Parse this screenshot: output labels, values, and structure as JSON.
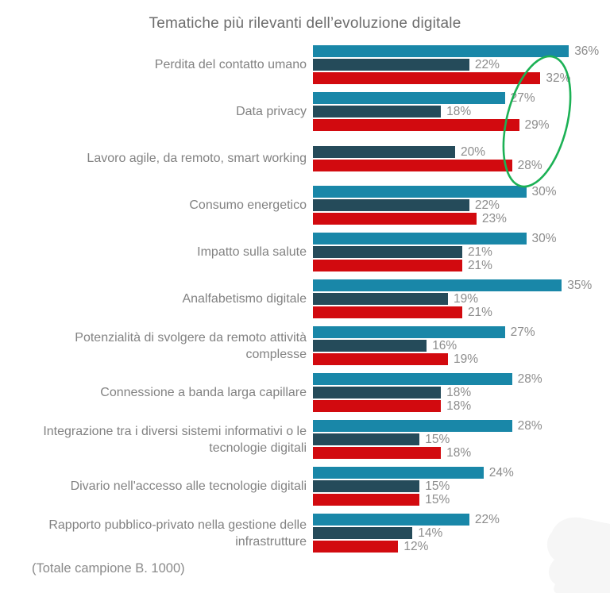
{
  "title": "Tematiche più rilevanti dell’evoluzione digitale",
  "footnote": "(Totale campione B. 1000)",
  "colors": {
    "series_teal": "#1987a8",
    "series_dark": "#254b5a",
    "series_red": "#d20a0f",
    "highlight_green": "#1cb155",
    "label_gray": "#828282",
    "value_gray": "#8c8c8c",
    "corner_shape_gray": "#f6f6f6"
  },
  "chart_data": {
    "type": "bar",
    "orientation": "horizontal",
    "title": "Tematiche più rilevanti dell’evoluzione digitale",
    "value_unit": "%",
    "xlim": [
      0,
      40
    ],
    "grid": false,
    "legend_position": "none",
    "categories": [
      "Perdita del contatto umano",
      "Data privacy",
      "Lavoro agile, da remoto, smart working",
      "Consumo energetico",
      "Impatto sulla salute",
      "Analfabetismo digitale",
      "Potenzialità di svolgere da remoto attività complesse",
      "Connessione a banda larga capillare",
      "Integrazione tra i diversi sistemi informativi o le tecnologie digitali",
      "Divario nell'accesso alle tecnologie digitali",
      "Rapporto pubblico-privato nella gestione delle infrastrutture"
    ],
    "series": [
      {
        "name": "teal-series",
        "color": "#1987a8",
        "values": [
          36,
          27,
          null,
          30,
          30,
          35,
          27,
          28,
          28,
          24,
          22
        ]
      },
      {
        "name": "dark-series",
        "color": "#254b5a",
        "values": [
          22,
          18,
          20,
          22,
          21,
          19,
          16,
          18,
          15,
          15,
          14
        ]
      },
      {
        "name": "red-series",
        "color": "#d20a0f",
        "values": [
          32,
          29,
          28,
          23,
          21,
          21,
          19,
          18,
          18,
          15,
          12
        ]
      }
    ],
    "annotations": [
      {
        "type": "ellipse",
        "color": "#1cb155",
        "note": "hand-drawn green ellipse highlighting the red-series values of the top three categories: 32%, 29%, 28%"
      }
    ]
  }
}
